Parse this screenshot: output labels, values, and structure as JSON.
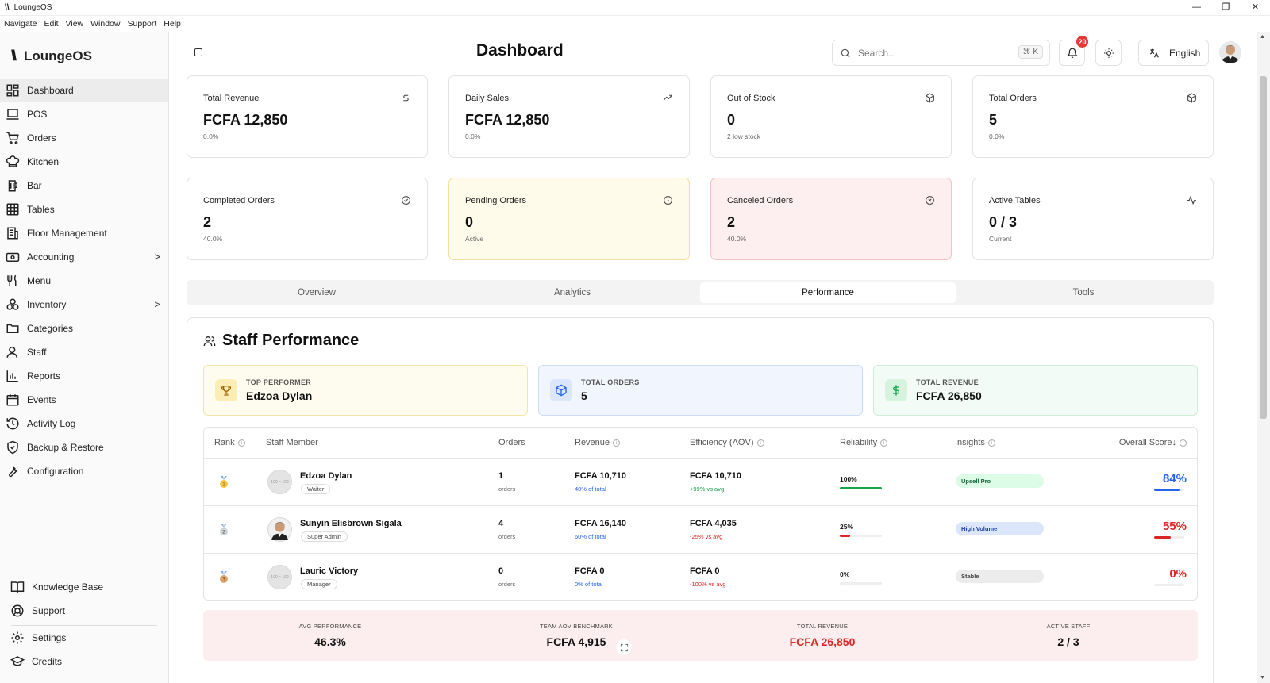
{
  "window": {
    "title": "LoungeOS",
    "logo_glyph": "\\\\",
    "controls": {
      "minimize": "—",
      "maximize": "❐",
      "close": "✕"
    }
  },
  "menu": [
    "Navigate",
    "Edit",
    "View",
    "Window",
    "Support",
    "Help"
  ],
  "brand": {
    "mark": "\\\\",
    "name": "LoungeOS"
  },
  "sidebar": {
    "items": [
      {
        "label": "Dashboard",
        "icon": "dashboard-icon",
        "active": true
      },
      {
        "label": "POS",
        "icon": "laptop-icon"
      },
      {
        "label": "Orders",
        "icon": "cart-icon"
      },
      {
        "label": "Kitchen",
        "icon": "chef-hat-icon"
      },
      {
        "label": "Bar",
        "icon": "beer-icon"
      },
      {
        "label": "Tables",
        "icon": "table-icon"
      },
      {
        "label": "Floor Management",
        "icon": "building-icon"
      },
      {
        "label": "Accounting",
        "icon": "wallet-icon",
        "chevron": ">"
      },
      {
        "label": "Menu",
        "icon": "utensils-icon"
      },
      {
        "label": "Inventory",
        "icon": "boxes-icon",
        "chevron": ">"
      },
      {
        "label": "Categories",
        "icon": "folder-icon"
      },
      {
        "label": "Staff",
        "icon": "user-icon"
      },
      {
        "label": "Reports",
        "icon": "bar-chart-icon"
      },
      {
        "label": "Events",
        "icon": "calendar-icon"
      },
      {
        "label": "Activity Log",
        "icon": "history-icon"
      },
      {
        "label": "Backup & Restore",
        "icon": "shield-icon"
      },
      {
        "label": "Configuration",
        "icon": "wrench-icon"
      }
    ],
    "bottom": [
      {
        "label": "Knowledge Base",
        "icon": "book-icon"
      },
      {
        "label": "Support",
        "icon": "lifebuoy-icon"
      },
      {
        "label": "Settings",
        "icon": "gear-icon"
      },
      {
        "label": "Credits",
        "icon": "graduation-cap-icon"
      }
    ]
  },
  "header": {
    "title": "Dashboard",
    "search_placeholder": "Search...",
    "search_shortcut": "⌘ K",
    "notifications_count": "20",
    "language": "English"
  },
  "stats": [
    {
      "label": "Total Revenue",
      "value": "FCFA 12,850",
      "sub": "0.0%",
      "icon": "dollar-icon",
      "tone": "default"
    },
    {
      "label": "Daily Sales",
      "value": "FCFA 12,850",
      "sub": "0.0%",
      "icon": "trending-up-icon",
      "tone": "default"
    },
    {
      "label": "Out of Stock",
      "value": "0",
      "sub": "2 low stock",
      "icon": "package-icon",
      "tone": "default"
    },
    {
      "label": "Total Orders",
      "value": "5",
      "sub": "0.0%",
      "icon": "package-icon",
      "tone": "default"
    },
    {
      "label": "Completed Orders",
      "value": "2",
      "sub": "40.0%",
      "icon": "check-circle-icon",
      "tone": "default"
    },
    {
      "label": "Pending Orders",
      "value": "0",
      "sub": "Active",
      "icon": "clock-icon",
      "tone": "yellow"
    },
    {
      "label": "Canceled Orders",
      "value": "2",
      "sub": "40.0%",
      "icon": "x-circle-icon",
      "tone": "red"
    },
    {
      "label": "Active Tables",
      "value": "0 / 3",
      "sub": "Current",
      "icon": "activity-icon",
      "tone": "default"
    }
  ],
  "tabs": [
    {
      "label": "Overview"
    },
    {
      "label": "Analytics"
    },
    {
      "label": "Performance",
      "active": true
    },
    {
      "label": "Tools"
    }
  ],
  "performance": {
    "title": "Staff Performance",
    "highlights": [
      {
        "label": "TOP PERFORMER",
        "value": "Edzoa Dylan",
        "icon": "trophy-icon",
        "tone": "yellow"
      },
      {
        "label": "TOTAL ORDERS",
        "value": "5",
        "icon": "package-icon",
        "tone": "blue"
      },
      {
        "label": "TOTAL REVENUE",
        "value": "FCFA 26,850",
        "icon": "dollar-icon",
        "tone": "green"
      }
    ],
    "columns": [
      "Rank",
      "Staff Member",
      "Orders",
      "Revenue",
      "Efficiency (AOV)",
      "Reliability",
      "Insights",
      "Overall Score↓"
    ],
    "rows": [
      {
        "rank_medal": "gold",
        "avatar": "placeholder",
        "avatar_text": "100 × 100",
        "name": "Edzoa Dylan",
        "role": "Waiter",
        "orders": "1",
        "orders_sub": "orders",
        "revenue": "FCFA 10,710",
        "revenue_sub": "40% of total",
        "aov": "FCFA 10,710",
        "aov_sub": "+99% vs avg",
        "aov_tone": "green",
        "reliability": "100%",
        "reliability_pct": 100,
        "insight": "Upsell Pro",
        "insight_tone": "green",
        "score": "84%",
        "score_pct": 84,
        "score_tone": "blue"
      },
      {
        "rank_medal": "silver",
        "avatar": "photo",
        "name": "Sunyin Elisbrown Sigala",
        "role": "Super Admin",
        "orders": "4",
        "orders_sub": "orders",
        "revenue": "FCFA 16,140",
        "revenue_sub": "60% of total",
        "aov": "FCFA 4,035",
        "aov_sub": "-25% vs avg",
        "aov_tone": "red",
        "reliability": "25%",
        "reliability_pct": 25,
        "insight": "High Volume",
        "insight_tone": "blue",
        "score": "55%",
        "score_pct": 55,
        "score_tone": "red"
      },
      {
        "rank_medal": "bronze",
        "avatar": "placeholder",
        "avatar_text": "100 × 100",
        "name": "Lauric Victory",
        "role": "Manager",
        "orders": "0",
        "orders_sub": "orders",
        "revenue": "FCFA 0",
        "revenue_sub": "0% of total",
        "aov": "FCFA 0",
        "aov_sub": "-100% vs avg",
        "aov_tone": "red",
        "reliability": "0%",
        "reliability_pct": 0,
        "insight": "Stable",
        "insight_tone": "gray",
        "score": "0%",
        "score_pct": 0,
        "score_tone": "red"
      }
    ],
    "summary": [
      {
        "label": "AVG PERFORMANCE",
        "value": "46.3%"
      },
      {
        "label": "TEAM AOV BENCHMARK",
        "value": "FCFA 4,915"
      },
      {
        "label": "TOTAL REVENUE",
        "value": "FCFA 26,850",
        "tone": "red"
      },
      {
        "label": "ACTIVE STAFF",
        "value": "2 / 3"
      }
    ]
  },
  "colors": {
    "accent_blue": "#2563eb",
    "accent_red": "#dc2626",
    "accent_green": "#16a34a",
    "pending_bg": "#fefbea",
    "canceled_bg": "#fdeff0",
    "summary_bg": "#fcedef"
  }
}
